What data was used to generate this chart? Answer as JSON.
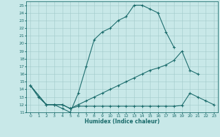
{
  "xlabel": "Humidex (Indice chaleur)",
  "xlim": [
    -0.5,
    23.5
  ],
  "ylim": [
    11,
    25.5
  ],
  "yticks": [
    11,
    12,
    13,
    14,
    15,
    16,
    17,
    18,
    19,
    20,
    21,
    22,
    23,
    24,
    25
  ],
  "xticks": [
    0,
    1,
    2,
    3,
    4,
    5,
    6,
    7,
    8,
    9,
    10,
    11,
    12,
    13,
    14,
    15,
    16,
    17,
    18,
    19,
    20,
    21,
    22,
    23
  ],
  "background_color": "#c8e8e8",
  "grid_color": "#a0c8c8",
  "line_color": "#1a6b6b",
  "line1_x": [
    0,
    1,
    2,
    3,
    4,
    5,
    6,
    7,
    8,
    9,
    10,
    11,
    12,
    13,
    14,
    15,
    16,
    17,
    18
  ],
  "line1_y": [
    14.5,
    13.0,
    12.0,
    12.0,
    11.5,
    11.0,
    13.5,
    17.0,
    20.5,
    21.5,
    22.0,
    23.0,
    23.5,
    25.0,
    25.0,
    24.5,
    24.0,
    21.5,
    19.5
  ],
  "line2_x": [
    0,
    2,
    3,
    4,
    5,
    6,
    7,
    8,
    9,
    10,
    11,
    12,
    13,
    14,
    15,
    16,
    17,
    18,
    19,
    20,
    21
  ],
  "line2_y": [
    14.5,
    12.0,
    12.0,
    12.0,
    11.5,
    12.0,
    12.5,
    13.0,
    13.5,
    14.0,
    14.5,
    15.0,
    15.5,
    16.0,
    16.5,
    16.8,
    17.2,
    17.8,
    19.0,
    16.5,
    16.0
  ],
  "line3_x": [
    0,
    2,
    3,
    4,
    5,
    6,
    7,
    8,
    9,
    10,
    11,
    12,
    13,
    14,
    15,
    16,
    17,
    18,
    19,
    20,
    21,
    22,
    23
  ],
  "line3_y": [
    14.5,
    12.0,
    12.0,
    12.0,
    11.5,
    11.8,
    11.8,
    11.8,
    11.8,
    11.8,
    11.8,
    11.8,
    11.8,
    11.8,
    11.8,
    11.8,
    11.8,
    11.8,
    11.9,
    13.5,
    13.0,
    12.5,
    12.0
  ]
}
